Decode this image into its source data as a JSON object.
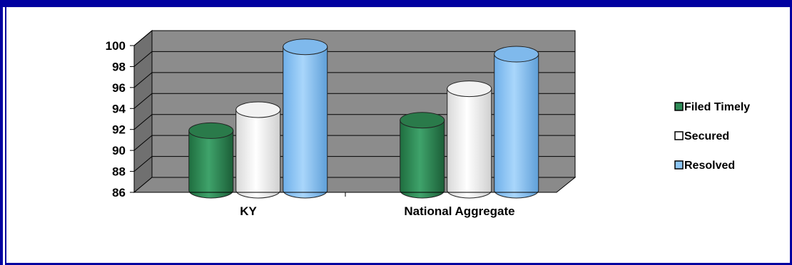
{
  "colors": {
    "frame": "#0000a0",
    "plot_back": "#8c8c8c",
    "plot_side": "#707070",
    "grid": "#000000"
  },
  "chart_data": {
    "type": "bar",
    "style": "3d-cylinder",
    "categories": [
      "KY",
      "National Aggregate"
    ],
    "series": [
      {
        "name": "Filed Timely",
        "values": [
          91,
          92
        ],
        "color": "#2e8b57",
        "legend_icon": "filled-square"
      },
      {
        "name": "Secured",
        "values": [
          93,
          95
        ],
        "color": "#ffffff",
        "legend_icon": "hollow-square"
      },
      {
        "name": "Resolved",
        "values": [
          99,
          98.3
        ],
        "color": "#8cc6f5",
        "legend_icon": "blue-square"
      }
    ],
    "ylim": [
      86,
      100
    ],
    "yticks": [
      86,
      88,
      90,
      92,
      94,
      96,
      98,
      100
    ],
    "ytick_labels": [
      "86",
      "88",
      "90",
      "92",
      "94",
      "96",
      "98",
      "100"
    ],
    "grid": true,
    "legend_position": "right"
  }
}
